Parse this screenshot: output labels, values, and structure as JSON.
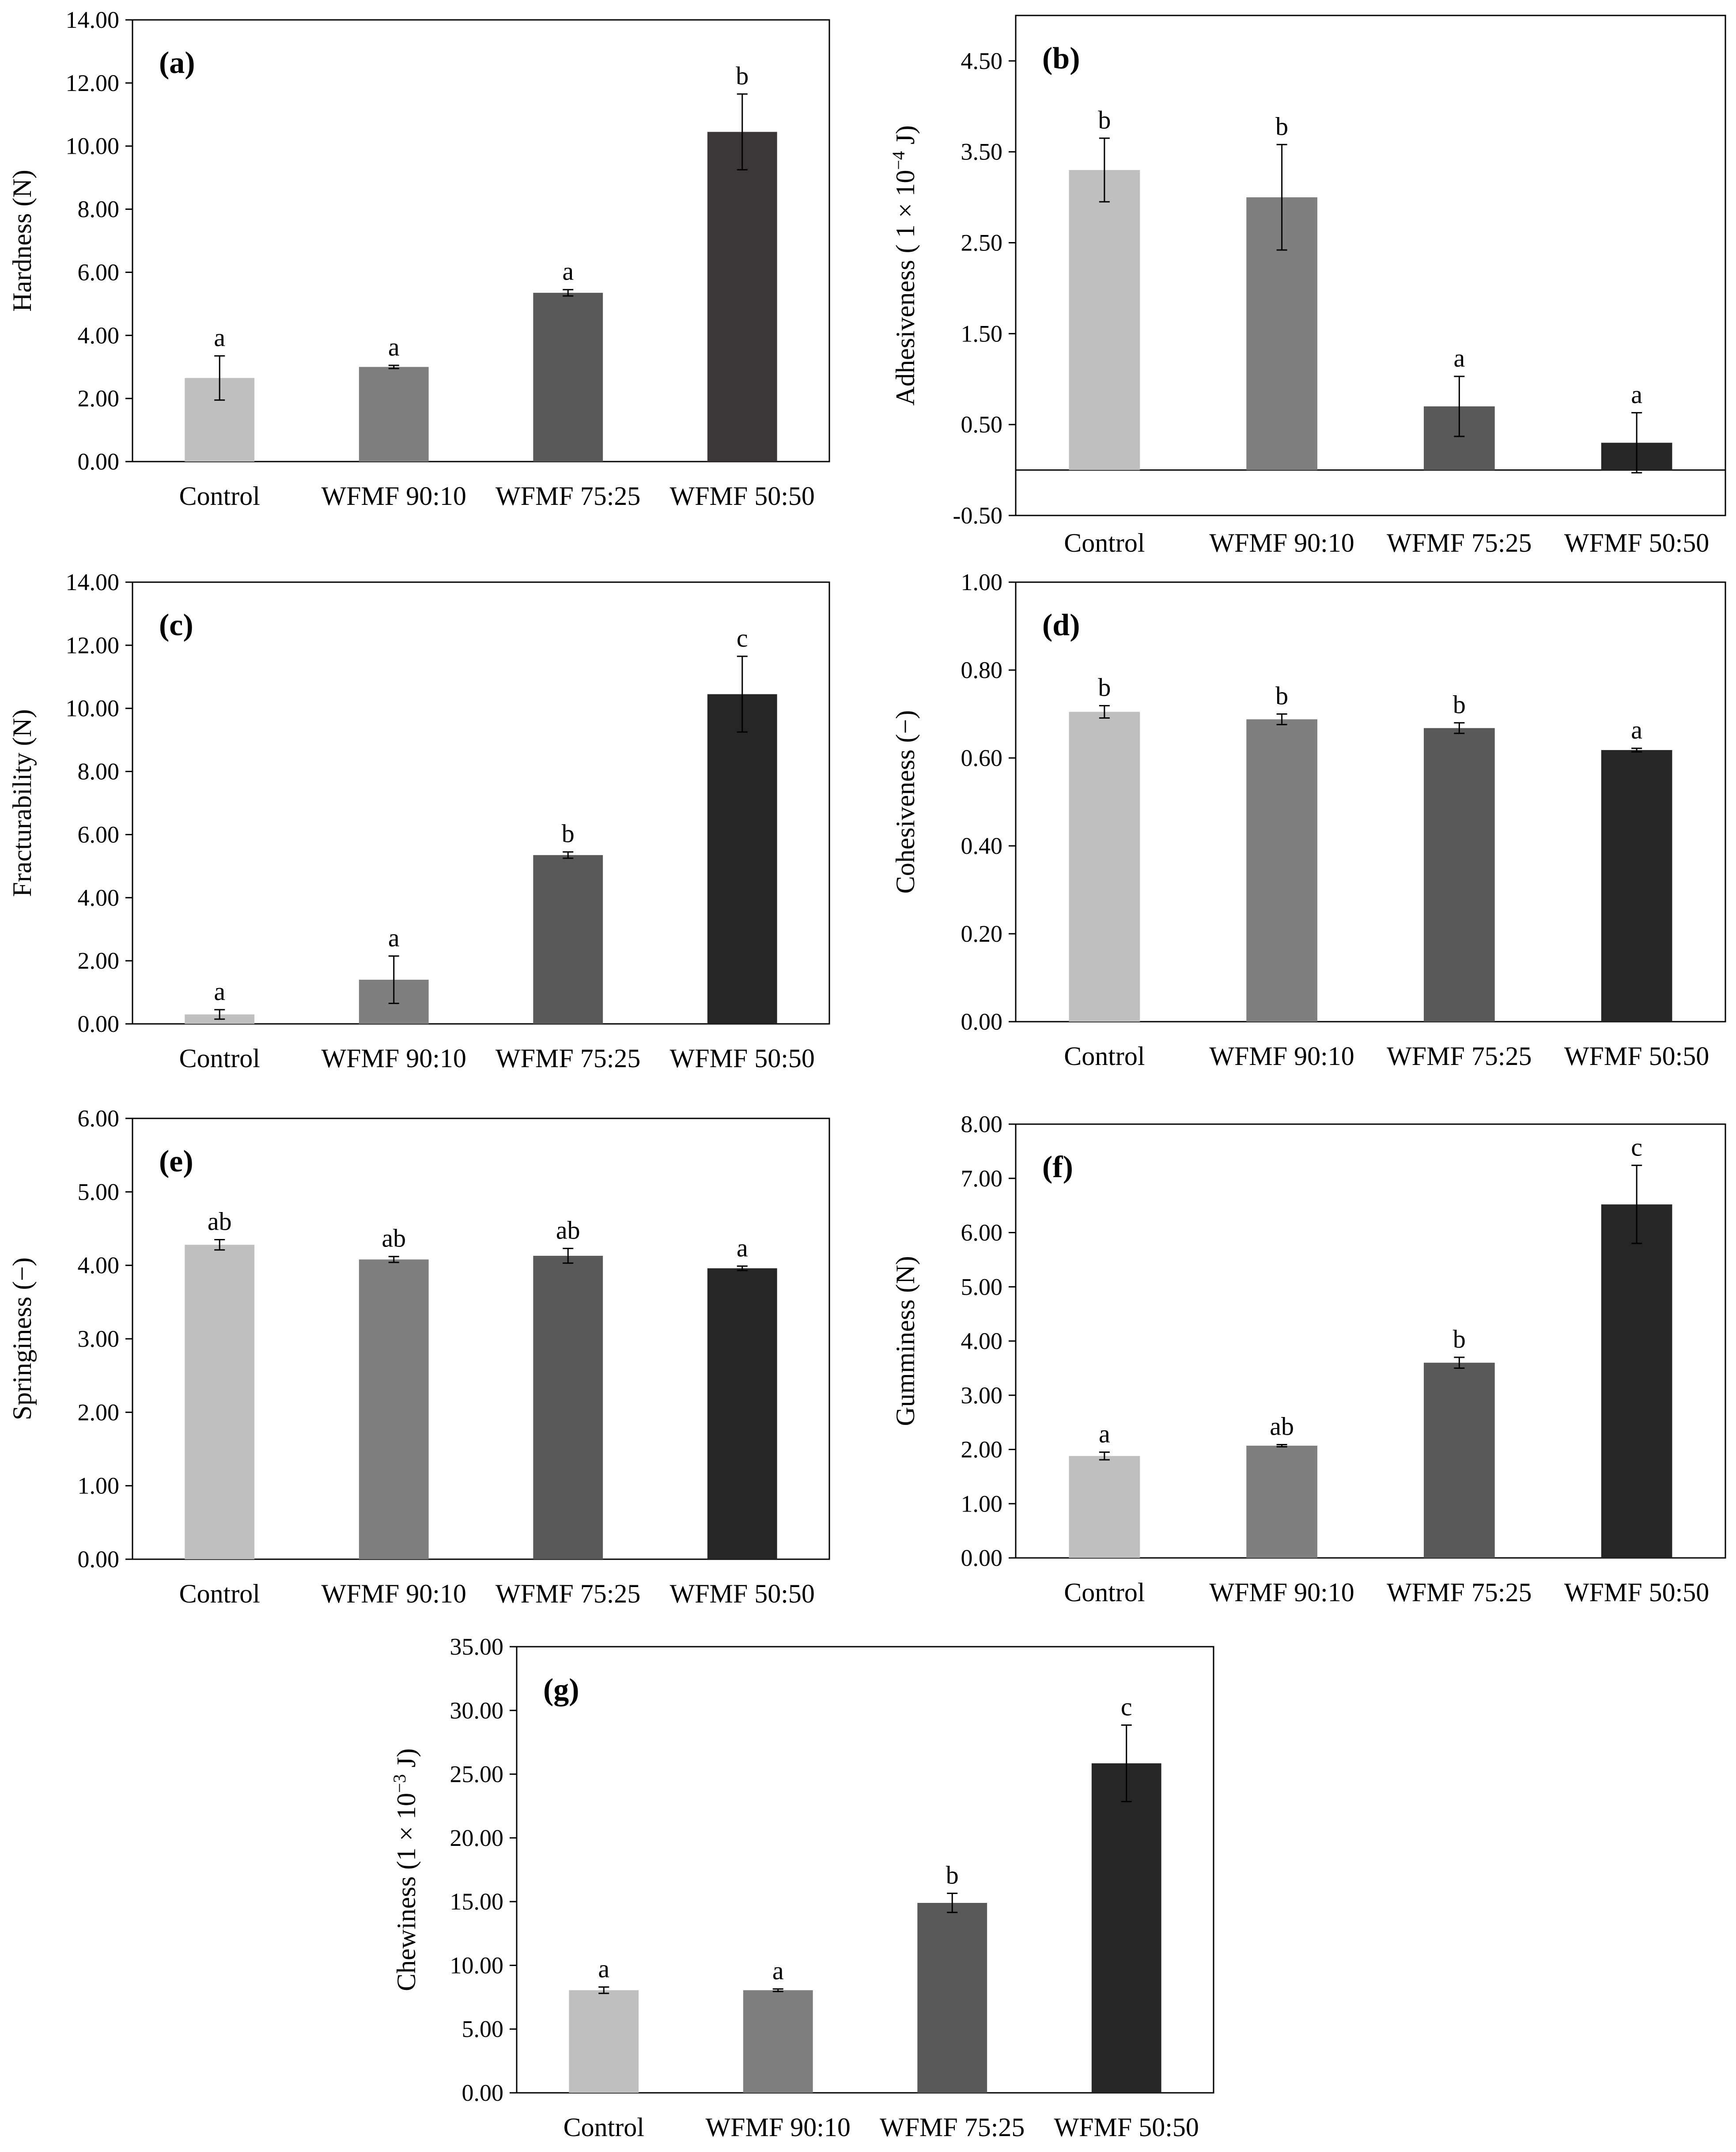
{
  "chart_data": [
    {
      "id": "a",
      "type": "bar",
      "panel_label": "(a)",
      "categories": [
        "Control",
        "WFMF 90:10",
        "WFMF 75:25",
        "WFMF 50:50"
      ],
      "values": [
        2.65,
        3.0,
        5.35,
        10.45
      ],
      "errors": [
        0.7,
        0.05,
        0.1,
        1.2
      ],
      "letters": [
        "a",
        "a",
        "a",
        "b"
      ],
      "colors": [
        "#bfbfbf",
        "#7f7f7f",
        "#595959",
        "#3b3738"
      ],
      "ylabel": "Hardness (N)",
      "ylim": [
        0,
        14
      ],
      "yticks": [
        "0.00",
        "2.00",
        "4.00",
        "6.00",
        "8.00",
        "10.00",
        "12.00",
        "14.00"
      ],
      "ytick_values": [
        0,
        2,
        4,
        6,
        8,
        10,
        12,
        14
      ]
    },
    {
      "id": "b",
      "type": "bar",
      "panel_label": "(b)",
      "categories": [
        "Control",
        "WFMF 90:10",
        "WFMF 75:25",
        "WFMF 50:50"
      ],
      "values": [
        3.3,
        3.0,
        0.7,
        0.3
      ],
      "errors": [
        0.35,
        0.58,
        0.33,
        0.33
      ],
      "letters": [
        "b",
        "b",
        "a",
        "a"
      ],
      "colors": [
        "#bfbfbf",
        "#7f7f7f",
        "#595959",
        "#262626"
      ],
      "ylabel_parts": [
        "Adhesiveness ( 1 × 10",
        "−4",
        " J)"
      ],
      "ylim": [
        -0.5,
        5.0
      ],
      "yticks": [
        "-0.50",
        "0.50",
        "1.50",
        "2.50",
        "3.50",
        "4.50"
      ],
      "ytick_values": [
        -0.5,
        0.5,
        1.5,
        2.5,
        3.5,
        4.5
      ]
    },
    {
      "id": "c",
      "type": "bar",
      "panel_label": "(c)",
      "categories": [
        "Control",
        "WFMF 90:10",
        "WFMF 75:25",
        "WFMF 50:50"
      ],
      "values": [
        0.3,
        1.4,
        5.35,
        10.45
      ],
      "errors": [
        0.15,
        0.75,
        0.1,
        1.2
      ],
      "letters": [
        "a",
        "a",
        "b",
        "c"
      ],
      "colors": [
        "#bfbfbf",
        "#7f7f7f",
        "#595959",
        "#262626"
      ],
      "ylabel": "Fracturability (N)",
      "ylim": [
        0,
        14
      ],
      "yticks": [
        "0.00",
        "2.00",
        "4.00",
        "6.00",
        "8.00",
        "10.00",
        "12.00",
        "14.00"
      ],
      "ytick_values": [
        0,
        2,
        4,
        6,
        8,
        10,
        12,
        14
      ]
    },
    {
      "id": "d",
      "type": "bar",
      "panel_label": "(d)",
      "categories": [
        "Control",
        "WFMF 90:10",
        "WFMF 75:25",
        "WFMF 50:50"
      ],
      "values": [
        0.705,
        0.688,
        0.668,
        0.618
      ],
      "errors": [
        0.014,
        0.012,
        0.012,
        0.004
      ],
      "letters": [
        "b",
        "b",
        "b",
        "a"
      ],
      "colors": [
        "#bfbfbf",
        "#7f7f7f",
        "#595959",
        "#262626"
      ],
      "ylabel": "Cohesiveness (−)",
      "ylim": [
        0,
        1.0
      ],
      "yticks": [
        "0.00",
        "0.20",
        "0.40",
        "0.60",
        "0.80",
        "1.00"
      ],
      "ytick_values": [
        0,
        0.2,
        0.4,
        0.6,
        0.8,
        1.0
      ]
    },
    {
      "id": "e",
      "type": "bar",
      "panel_label": "(e)",
      "categories": [
        "Control",
        "WFMF 90:10",
        "WFMF 75:25",
        "WFMF 50:50"
      ],
      "values": [
        4.28,
        4.08,
        4.13,
        3.96
      ],
      "errors": [
        0.07,
        0.04,
        0.1,
        0.03
      ],
      "letters": [
        "ab",
        "ab",
        "ab",
        "a"
      ],
      "colors": [
        "#bfbfbf",
        "#7f7f7f",
        "#595959",
        "#262626"
      ],
      "ylabel": "Springiness (−)",
      "ylim": [
        0,
        6.0
      ],
      "yticks": [
        "0.00",
        "1.00",
        "2.00",
        "3.00",
        "4.00",
        "5.00",
        "6.00"
      ],
      "ytick_values": [
        0,
        1,
        2,
        3,
        4,
        5,
        6
      ]
    },
    {
      "id": "f",
      "type": "bar",
      "panel_label": "(f)",
      "categories": [
        "Control",
        "WFMF 90:10",
        "WFMF 75:25",
        "WFMF 50:50"
      ],
      "values": [
        1.88,
        2.07,
        3.6,
        6.52
      ],
      "errors": [
        0.07,
        0.02,
        0.1,
        0.72
      ],
      "letters": [
        "a",
        "ab",
        "b",
        "c"
      ],
      "colors": [
        "#bfbfbf",
        "#7f7f7f",
        "#595959",
        "#262626"
      ],
      "ylabel": "Gumminess (N)",
      "ylim": [
        0,
        8.0
      ],
      "yticks": [
        "0.00",
        "1.00",
        "2.00",
        "3.00",
        "4.00",
        "5.00",
        "6.00",
        "7.00",
        "8.00"
      ],
      "ytick_values": [
        0,
        1,
        2,
        3,
        4,
        5,
        6,
        7,
        8
      ]
    },
    {
      "id": "g",
      "type": "bar",
      "panel_label": "(g)",
      "categories": [
        "Control",
        "WFMF 90:10",
        "WFMF 75:25",
        "WFMF 50:50"
      ],
      "values": [
        8.05,
        8.05,
        14.9,
        25.85
      ],
      "errors": [
        0.25,
        0.1,
        0.75,
        3.0
      ],
      "letters": [
        "a",
        "a",
        "b",
        "c"
      ],
      "colors": [
        "#bfbfbf",
        "#7f7f7f",
        "#595959",
        "#262626"
      ],
      "ylabel_parts": [
        "Chewiness (1 × 10",
        "−3",
        " J)"
      ],
      "ylim": [
        0,
        35.0
      ],
      "yticks": [
        "0.00",
        "5.00",
        "10.00",
        "15.00",
        "20.00",
        "25.00",
        "30.00",
        "35.00"
      ],
      "ytick_values": [
        0,
        5,
        10,
        15,
        20,
        25,
        30,
        35
      ]
    }
  ]
}
